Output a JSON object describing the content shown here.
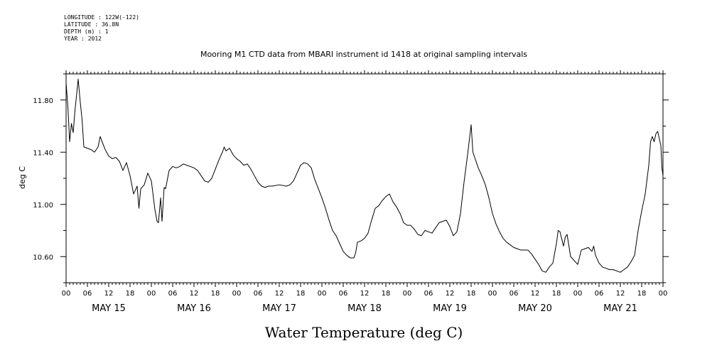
{
  "header": {
    "lines": [
      "LONGITUDE : 122W(-122)",
      "LATITUDE : 36.8N",
      "DEPTH (m) : 1",
      "YEAR : 2012"
    ]
  },
  "chart_data": {
    "type": "line",
    "title": "Mooring M1 CTD data from MBARI instrument id 1418 at original sampling intervals",
    "xlabel": "Water Temperature (deg C)",
    "ylabel": "deg C",
    "ylim": [
      10.4,
      12.0
    ],
    "yticks": [
      10.6,
      11.0,
      11.4,
      11.8
    ],
    "ytick_labels": [
      "10.60",
      "11.00",
      "11.40",
      "11.80"
    ],
    "x_unit": "hours since May 15 00:00",
    "xlim": [
      0,
      168
    ],
    "hour_tick_labels": [
      "00",
      "06",
      "12",
      "18",
      "00",
      "06",
      "12",
      "18",
      "00",
      "06",
      "12",
      "18",
      "00",
      "06",
      "12",
      "18",
      "00",
      "06",
      "12",
      "18",
      "00",
      "06",
      "12",
      "18",
      "00",
      "06",
      "12",
      "18",
      "00"
    ],
    "day_labels": [
      "MAY 15",
      "MAY 16",
      "MAY 17",
      "MAY 18",
      "MAY 19",
      "MAY 20",
      "MAY 21"
    ],
    "grid": false,
    "series": [
      {
        "points": [
          [
            0.0,
            11.93
          ],
          [
            0.5,
            11.75
          ],
          [
            1.0,
            11.48
          ],
          [
            1.5,
            11.62
          ],
          [
            2.0,
            11.55
          ],
          [
            2.5,
            11.72
          ],
          [
            3.0,
            11.85
          ],
          [
            3.4,
            11.96
          ],
          [
            4.0,
            11.78
          ],
          [
            4.5,
            11.65
          ],
          [
            5.0,
            11.44
          ],
          [
            6.0,
            11.43
          ],
          [
            7.0,
            11.42
          ],
          [
            8.0,
            11.4
          ],
          [
            9.0,
            11.44
          ],
          [
            9.6,
            11.52
          ],
          [
            10.0,
            11.49
          ],
          [
            11.0,
            11.42
          ],
          [
            12.0,
            11.37
          ],
          [
            13.0,
            11.35
          ],
          [
            14.0,
            11.36
          ],
          [
            15.0,
            11.33
          ],
          [
            16.0,
            11.26
          ],
          [
            17.0,
            11.32
          ],
          [
            18.0,
            11.22
          ],
          [
            19.0,
            11.08
          ],
          [
            20.0,
            11.14
          ],
          [
            20.5,
            10.97
          ],
          [
            21.0,
            11.12
          ],
          [
            22.0,
            11.15
          ],
          [
            23.0,
            11.24
          ],
          [
            24.0,
            11.18
          ],
          [
            25.0,
            10.96
          ],
          [
            25.6,
            10.87
          ],
          [
            26.0,
            10.86
          ],
          [
            26.6,
            11.05
          ],
          [
            27.0,
            10.87
          ],
          [
            27.6,
            11.13
          ],
          [
            28.0,
            11.12
          ],
          [
            29.0,
            11.26
          ],
          [
            30.0,
            11.29
          ],
          [
            31.0,
            11.28
          ],
          [
            32.0,
            11.29
          ],
          [
            33.0,
            11.31
          ],
          [
            34.0,
            11.3
          ],
          [
            35.0,
            11.29
          ],
          [
            36.0,
            11.28
          ],
          [
            37.0,
            11.26
          ],
          [
            38.0,
            11.22
          ],
          [
            39.0,
            11.18
          ],
          [
            40.0,
            11.17
          ],
          [
            41.0,
            11.2
          ],
          [
            42.0,
            11.27
          ],
          [
            43.0,
            11.34
          ],
          [
            44.0,
            11.4
          ],
          [
            44.5,
            11.44
          ],
          [
            45.0,
            11.41
          ],
          [
            46.0,
            11.43
          ],
          [
            47.0,
            11.38
          ],
          [
            48.0,
            11.35
          ],
          [
            49.0,
            11.33
          ],
          [
            50.0,
            11.3
          ],
          [
            51.0,
            11.31
          ],
          [
            52.0,
            11.27
          ],
          [
            53.0,
            11.22
          ],
          [
            54.0,
            11.17
          ],
          [
            55.0,
            11.14
          ],
          [
            56.0,
            11.13
          ],
          [
            57.0,
            11.14
          ],
          [
            58.0,
            11.14
          ],
          [
            60.0,
            11.15
          ],
          [
            62.0,
            11.14
          ],
          [
            63.0,
            11.15
          ],
          [
            64.0,
            11.18
          ],
          [
            65.0,
            11.24
          ],
          [
            66.0,
            11.3
          ],
          [
            67.0,
            11.32
          ],
          [
            68.0,
            11.31
          ],
          [
            69.0,
            11.28
          ],
          [
            70.0,
            11.19
          ],
          [
            71.0,
            11.12
          ],
          [
            72.0,
            11.05
          ],
          [
            73.0,
            10.97
          ],
          [
            74.0,
            10.88
          ],
          [
            75.0,
            10.8
          ],
          [
            76.0,
            10.76
          ],
          [
            77.0,
            10.7
          ],
          [
            78.0,
            10.64
          ],
          [
            79.0,
            10.61
          ],
          [
            80.0,
            10.59
          ],
          [
            81.0,
            10.59
          ],
          [
            81.5,
            10.63
          ],
          [
            82.0,
            10.71
          ],
          [
            83.0,
            10.72
          ],
          [
            84.0,
            10.74
          ],
          [
            85.0,
            10.78
          ],
          [
            86.0,
            10.88
          ],
          [
            87.0,
            10.97
          ],
          [
            88.0,
            10.99
          ],
          [
            89.0,
            11.03
          ],
          [
            90.0,
            11.06
          ],
          [
            91.0,
            11.08
          ],
          [
            92.0,
            11.02
          ],
          [
            93.0,
            10.98
          ],
          [
            94.0,
            10.93
          ],
          [
            95.0,
            10.86
          ],
          [
            96.0,
            10.84
          ],
          [
            97.0,
            10.84
          ],
          [
            98.0,
            10.81
          ],
          [
            99.0,
            10.77
          ],
          [
            100.0,
            10.76
          ],
          [
            101.0,
            10.8
          ],
          [
            102.0,
            10.79
          ],
          [
            103.0,
            10.78
          ],
          [
            104.0,
            10.82
          ],
          [
            105.0,
            10.86
          ],
          [
            106.0,
            10.87
          ],
          [
            107.0,
            10.88
          ],
          [
            108.0,
            10.83
          ],
          [
            109.0,
            10.76
          ],
          [
            110.0,
            10.79
          ],
          [
            111.0,
            10.93
          ],
          [
            112.0,
            11.17
          ],
          [
            113.0,
            11.38
          ],
          [
            114.0,
            11.61
          ],
          [
            114.5,
            11.4
          ],
          [
            115.0,
            11.36
          ],
          [
            116.0,
            11.28
          ],
          [
            117.0,
            11.22
          ],
          [
            118.0,
            11.15
          ],
          [
            119.0,
            11.05
          ],
          [
            120.0,
            10.93
          ],
          [
            121.0,
            10.85
          ],
          [
            122.0,
            10.79
          ],
          [
            123.0,
            10.74
          ],
          [
            124.0,
            10.71
          ],
          [
            125.0,
            10.69
          ],
          [
            126.0,
            10.67
          ],
          [
            127.0,
            10.66
          ],
          [
            128.0,
            10.65
          ],
          [
            129.0,
            10.65
          ],
          [
            130.0,
            10.65
          ],
          [
            131.0,
            10.62
          ],
          [
            132.0,
            10.58
          ],
          [
            133.0,
            10.54
          ],
          [
            134.0,
            10.49
          ],
          [
            135.0,
            10.48
          ],
          [
            136.0,
            10.52
          ],
          [
            137.0,
            10.55
          ],
          [
            138.0,
            10.7
          ],
          [
            138.5,
            10.8
          ],
          [
            139.0,
            10.79
          ],
          [
            140.0,
            10.68
          ],
          [
            140.5,
            10.75
          ],
          [
            141.0,
            10.77
          ],
          [
            142.0,
            10.6
          ],
          [
            143.0,
            10.57
          ],
          [
            144.0,
            10.54
          ],
          [
            145.0,
            10.65
          ],
          [
            146.0,
            10.66
          ],
          [
            147.0,
            10.67
          ],
          [
            148.0,
            10.64
          ],
          [
            148.5,
            10.68
          ],
          [
            149.0,
            10.61
          ],
          [
            150.0,
            10.55
          ],
          [
            151.0,
            10.52
          ],
          [
            152.0,
            10.51
          ],
          [
            153.0,
            10.5
          ],
          [
            154.0,
            10.5
          ],
          [
            155.0,
            10.49
          ],
          [
            156.0,
            10.48
          ],
          [
            157.0,
            10.5
          ],
          [
            158.0,
            10.52
          ],
          [
            159.0,
            10.56
          ],
          [
            160.0,
            10.61
          ],
          [
            161.0,
            10.8
          ],
          [
            162.0,
            10.95
          ],
          [
            163.0,
            11.08
          ],
          [
            164.0,
            11.3
          ],
          [
            164.5,
            11.48
          ],
          [
            165.0,
            11.52
          ],
          [
            165.5,
            11.48
          ],
          [
            166.0,
            11.54
          ],
          [
            166.5,
            11.56
          ],
          [
            167.0,
            11.5
          ],
          [
            167.4,
            11.45
          ],
          [
            167.7,
            11.28
          ],
          [
            168.0,
            11.22
          ]
        ]
      }
    ]
  }
}
